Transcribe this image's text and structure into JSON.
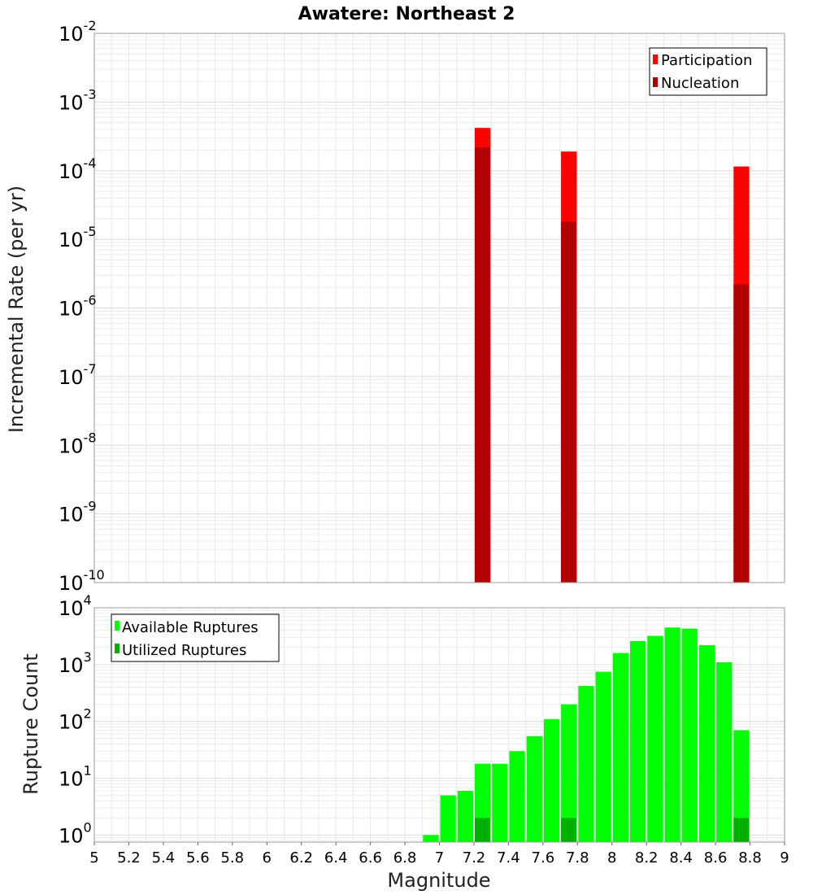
{
  "chart_data": [
    {
      "type": "bar",
      "title": "Awatere: Northeast 2",
      "xlabel": "Magnitude",
      "ylabel": "Incremental Rate (per yr)",
      "yscale": "log",
      "xlim": [
        5,
        9
      ],
      "ylim": [
        1e-10,
        0.01
      ],
      "y_tick_exponents": [
        -10,
        -9,
        -8,
        -7,
        -6,
        -5,
        -4,
        -3,
        -2
      ],
      "bin_width": 0.1,
      "legend": {
        "position": "top-right",
        "entries": [
          "Participation",
          "Nucleation"
        ]
      },
      "series": [
        {
          "name": "Participation",
          "color": "#ff0000",
          "x": [
            7.25,
            7.75,
            8.75
          ],
          "values": [
            0.00042,
            0.00019,
            0.000115
          ]
        },
        {
          "name": "Nucleation",
          "color": "#b00000",
          "x": [
            7.25,
            7.75,
            8.75
          ],
          "values": [
            0.00022,
            1.8e-05,
            2.2e-06
          ]
        }
      ]
    },
    {
      "type": "bar",
      "title": "",
      "xlabel": "Magnitude",
      "ylabel": "Rupture Count",
      "yscale": "log",
      "xlim": [
        5,
        9
      ],
      "ylim": [
        0.75,
        10000
      ],
      "y_tick_exponents": [
        0,
        1,
        2,
        3,
        4
      ],
      "x_ticks": [
        "5",
        "5.2",
        "5.4",
        "5.6",
        "5.8",
        "6",
        "6.2",
        "6.4",
        "6.6",
        "6.8",
        "7",
        "7.2",
        "7.4",
        "7.6",
        "7.8",
        "8",
        "8.2",
        "8.4",
        "8.6",
        "8.8",
        "9"
      ],
      "bin_width": 0.1,
      "legend": {
        "position": "top-left",
        "entries": [
          "Available Ruptures",
          "Utilized Ruptures"
        ]
      },
      "series": [
        {
          "name": "Available Ruptures",
          "color": "#00ff00",
          "x": [
            6.95,
            7.05,
            7.15,
            7.25,
            7.35,
            7.45,
            7.55,
            7.65,
            7.75,
            7.85,
            7.95,
            8.05,
            8.15,
            8.25,
            8.35,
            8.45,
            8.55,
            8.65,
            8.75
          ],
          "values": [
            1,
            5,
            6,
            18,
            18,
            30,
            55,
            110,
            200,
            420,
            750,
            1600,
            2600,
            3200,
            4500,
            4300,
            2200,
            1100,
            70
          ]
        },
        {
          "name": "Utilized Ruptures",
          "color": "#00b000",
          "x": [
            7.25,
            7.75,
            8.75
          ],
          "values": [
            2,
            2,
            2
          ]
        }
      ]
    }
  ]
}
